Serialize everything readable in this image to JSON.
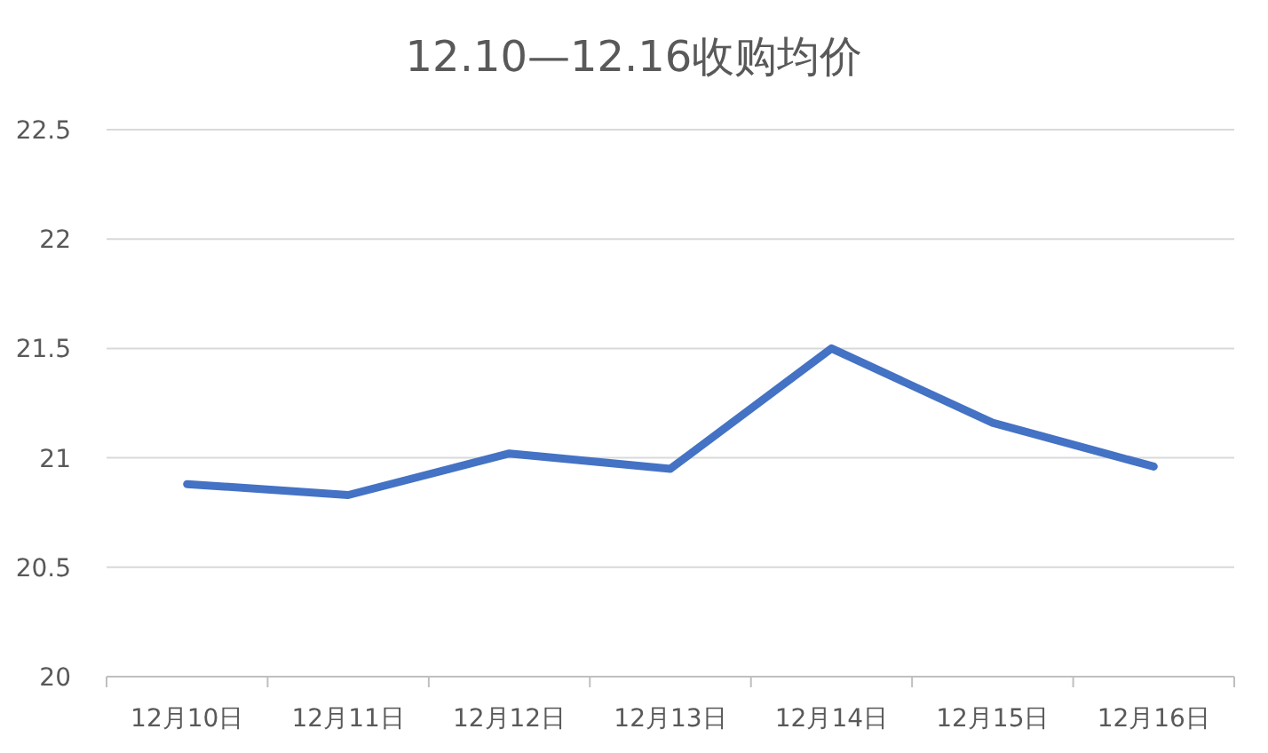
{
  "chart_data": {
    "type": "line",
    "title": "12.10—12.16收购均价",
    "categories": [
      "12月10日",
      "12月11日",
      "12月12日",
      "12月13日",
      "12月14日",
      "12月15日",
      "12月16日"
    ],
    "series": [
      {
        "color": "#4472c4",
        "values": [
          20.88,
          20.83,
          21.02,
          20.95,
          21.5,
          21.16,
          20.96
        ]
      }
    ],
    "ylim": [
      20,
      22.5
    ],
    "yticks": [
      20,
      20.5,
      21,
      21.5,
      22,
      22.5
    ],
    "grid": "y"
  }
}
